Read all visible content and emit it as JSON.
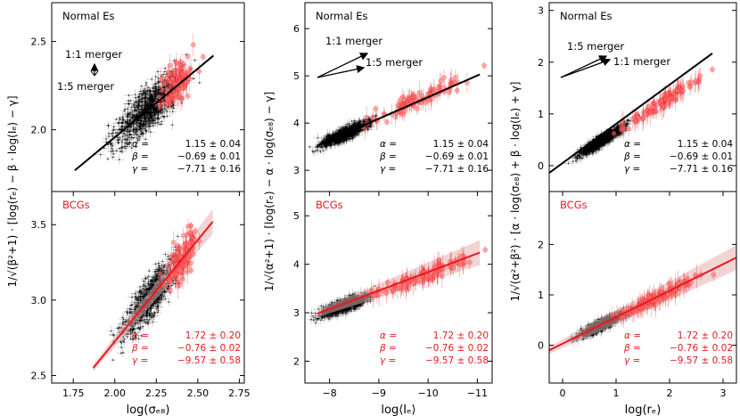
{
  "chart_data": [
    {
      "id": "tl",
      "type": "scatter",
      "title": "Normal Es",
      "title_color": "#000000",
      "xlim": [
        1.75,
        2.75
      ],
      "ylim": [
        1.65,
        2.72
      ],
      "xticks": [],
      "xticklabels": [],
      "yticks": [
        2.0,
        2.5
      ],
      "yticklabels": [
        "2.0",
        "2.5"
      ],
      "ylabel": "1/√(β²+1) · [log(rₑ) − β · log(Iₑ) − γ]",
      "fit_line": {
        "x": [
          1.87,
          2.59
        ],
        "y": [
          1.77,
          2.42
        ],
        "color": "#000000"
      },
      "black_points": {
        "x_center": 2.25,
        "x_spread": 0.12,
        "slope": 0.9,
        "intercept": 0.09,
        "scatter": 0.09,
        "count": 900
      },
      "red_points": {
        "x_center": 2.4,
        "x_spread": 0.06,
        "slope": 0.9,
        "intercept": 0.1,
        "scatter": 0.08,
        "count": 110
      },
      "stats": [
        {
          "sym": "α =",
          "val": "1.15 ± 0.04"
        },
        {
          "sym": "β =",
          "val": "−0.69 ± 0.01"
        },
        {
          "sym": "γ =",
          "val": "−7.71 ± 0.16"
        }
      ],
      "stats_color": "#000000",
      "annotation": {
        "upper": "1:1 merger",
        "lower": "1:5 merger"
      }
    },
    {
      "id": "tm",
      "type": "scatter",
      "title": "Normal Es",
      "title_color": "#000000",
      "xlim": [
        -7.5,
        -11.3
      ],
      "ylim": [
        2.55,
        6.55
      ],
      "xticks": [],
      "xticklabels": [],
      "yticks": [
        3,
        4,
        5,
        6
      ],
      "yticklabels": [
        "3",
        "4",
        "5",
        "6"
      ],
      "ylabel": "1/√(α²+1) · [log(rₑ) − α · log(σₑ₈) − γ]",
      "fit_line": {
        "x": [
          -7.75,
          -11.05
        ],
        "y": [
          3.52,
          5.03
        ],
        "color": "#000000"
      },
      "black_points": {
        "x_center": -8.3,
        "x_spread": 0.35,
        "slope": -0.46,
        "intercept": -0.05,
        "scatter": 0.09,
        "count": 900
      },
      "red_points": {
        "x_center": -9.7,
        "x_spread": 0.7,
        "slope": -0.46,
        "intercept": 0.0,
        "scatter": 0.12,
        "count": 100
      },
      "stats": [
        {
          "sym": "α =",
          "val": "1.15 ± 0.04"
        },
        {
          "sym": "β =",
          "val": "−0.69 ± 0.01"
        },
        {
          "sym": "γ =",
          "val": "−7.71 ± 0.16"
        }
      ],
      "stats_color": "#000000",
      "annotation": {
        "upper": "1:1 merger",
        "lower": "1:5 merger"
      }
    },
    {
      "id": "tr",
      "type": "scatter",
      "title": "Normal Es",
      "title_color": "#000000",
      "xlim": [
        -0.25,
        3.25
      ],
      "ylim": [
        -0.5,
        3.15
      ],
      "xticks": [],
      "xticklabels": [],
      "yticks": [
        0,
        1,
        2,
        3
      ],
      "yticklabels": [
        "0",
        "1",
        "2",
        "3"
      ],
      "ylabel": "1/√(α²+β²) · [α · log(σₑ₈) + β · log(Iₑ) + γ]",
      "fit_line": {
        "x": [
          -0.25,
          2.8
        ],
        "y": [
          -0.14,
          2.17
        ],
        "color": "#000000"
      },
      "black_points": {
        "x_center": 0.75,
        "x_spread": 0.3,
        "slope": 0.66,
        "intercept": 0.0,
        "scatter": 0.07,
        "count": 900
      },
      "red_points": {
        "x_center": 1.9,
        "x_spread": 0.5,
        "slope": 0.66,
        "intercept": 0.0,
        "scatter": 0.08,
        "count": 120
      },
      "stats": [
        {
          "sym": "α =",
          "val": "1.15 ± 0.04"
        },
        {
          "sym": "β =",
          "val": "−0.69 ± 0.01"
        },
        {
          "sym": "γ =",
          "val": "−7.71 ± 0.16"
        }
      ],
      "stats_color": "#000000",
      "annotation": {
        "upper": "1:5 merger",
        "lower": "1:1 merger"
      }
    },
    {
      "id": "bl",
      "type": "scatter",
      "title": "BCGs",
      "title_color": "#e8191e",
      "xlim": [
        1.62,
        2.78
      ],
      "ylim": [
        2.45,
        3.72
      ],
      "xticks": [
        1.75,
        2.0,
        2.25,
        2.5,
        2.75
      ],
      "xticklabels": [
        "1.75",
        "2.00",
        "2.25",
        "2.50",
        "2.75"
      ],
      "xlabel": "log(σₑ₈)",
      "yticks": [
        2.5,
        3.0,
        3.5
      ],
      "yticklabels": [
        "2.5",
        "3.0",
        "3.5"
      ],
      "ylabel": "",
      "fit_line": {
        "x": [
          1.87,
          2.59
        ],
        "y": [
          2.55,
          3.52
        ],
        "color": "#e8191e"
      },
      "black_points": {
        "x_center": 2.22,
        "x_spread": 0.12,
        "slope": 1.35,
        "intercept": 0.03,
        "scatter": 0.1,
        "count": 800
      },
      "red_points": {
        "x_center": 2.4,
        "x_spread": 0.06,
        "slope": 1.35,
        "intercept": 0.03,
        "scatter": 0.1,
        "count": 110
      },
      "stats": [
        {
          "sym": "α =",
          "val": "1.72 ± 0.20"
        },
        {
          "sym": "β =",
          "val": "−0.76 ± 0.02"
        },
        {
          "sym": "γ =",
          "val": "−9.57 ± 0.58"
        }
      ],
      "stats_color": "#e8191e"
    },
    {
      "id": "bm",
      "type": "scatter",
      "title": "BCGs",
      "title_color": "#e8191e",
      "xlim": [
        -7.5,
        -11.3
      ],
      "ylim": [
        1.55,
        5.5
      ],
      "xticks": [
        -8,
        -9,
        -10,
        -11
      ],
      "xticklabels": [
        "−8",
        "−9",
        "−10",
        "−11"
      ],
      "xlabel": "log⟨Iₑ⟩",
      "yticks": [
        2,
        3,
        4,
        5
      ],
      "yticklabels": [
        "2",
        "3",
        "4",
        "5"
      ],
      "ylabel": "",
      "fit_line": {
        "x": [
          -7.75,
          -11.05
        ],
        "y": [
          2.98,
          4.24
        ],
        "color": "#e8191e"
      },
      "black_points": {
        "x_center": -8.3,
        "x_spread": 0.35,
        "slope": -0.38,
        "intercept": 0.0,
        "scatter": 0.09,
        "count": 900
      },
      "red_points": {
        "x_center": -9.8,
        "x_spread": 0.7,
        "slope": -0.38,
        "intercept": 0.0,
        "scatter": 0.1,
        "count": 110
      },
      "stats": [
        {
          "sym": "α =",
          "val": "1.72 ± 0.20"
        },
        {
          "sym": "β =",
          "val": "−0.76 ± 0.02"
        },
        {
          "sym": "γ =",
          "val": "−9.57 ± 0.58"
        }
      ],
      "stats_color": "#e8191e"
    },
    {
      "id": "br",
      "type": "scatter",
      "title": "BCGs",
      "title_color": "#e8191e",
      "xlim": [
        -0.25,
        3.25
      ],
      "ylim": [
        -0.75,
        3.05
      ],
      "xticks": [
        0,
        1,
        2,
        3
      ],
      "xticklabels": [
        "0",
        "1",
        "2",
        "3"
      ],
      "xlabel": "log(rₑ)",
      "yticks": [
        0,
        1,
        2
      ],
      "yticklabels": [
        "0",
        "1",
        "2"
      ],
      "ylabel": "",
      "fit_line": {
        "x": [
          -0.25,
          3.25
        ],
        "y": [
          -0.1,
          1.74
        ],
        "color": "#e8191e"
      },
      "black_points": {
        "x_center": 0.75,
        "x_spread": 0.3,
        "slope": 0.52,
        "intercept": 0.03,
        "scatter": 0.07,
        "count": 900
      },
      "red_points": {
        "x_center": 1.8,
        "x_spread": 0.55,
        "slope": 0.52,
        "intercept": 0.03,
        "scatter": 0.08,
        "count": 120
      },
      "stats": [
        {
          "sym": "α =",
          "val": "1.72 ± 0.20"
        },
        {
          "sym": "β =",
          "val": "−0.76 ± 0.02"
        },
        {
          "sym": "γ =",
          "val": "−9.57 ± 0.58"
        }
      ],
      "stats_color": "#e8191e"
    }
  ],
  "colors": {
    "red": "#e8191e",
    "red_fill": "#ff7070",
    "black": "#000000",
    "band": "#e8b0b0"
  }
}
